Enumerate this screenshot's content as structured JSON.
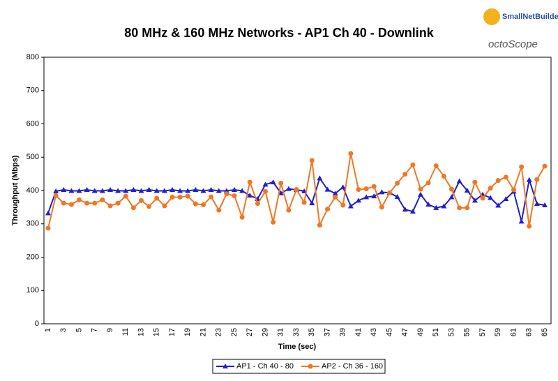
{
  "chart_data": {
    "type": "line",
    "title": "80 MHz & 160 MHz Networks - AP1 Ch 40 - Downlink",
    "x_label": "Time (sec)",
    "y_label": "Throughput (Mbps)",
    "logo": [
      "SmallNetBuilder",
      "octoScope"
    ],
    "categories": [
      1,
      null,
      3,
      null,
      5,
      null,
      7,
      null,
      9,
      null,
      11,
      null,
      13,
      null,
      15,
      null,
      17,
      null,
      19,
      null,
      21,
      null,
      23,
      null,
      25,
      null,
      27,
      null,
      29,
      null,
      31,
      null,
      33,
      null,
      35,
      null,
      37,
      null,
      39,
      null,
      41,
      null,
      43,
      null,
      45,
      null,
      47,
      null,
      49,
      null,
      51,
      null,
      53,
      null,
      55,
      null,
      57,
      null,
      59,
      null,
      61,
      null,
      63,
      null,
      65
    ],
    "ylim": [
      0,
      800
    ],
    "yticks": [
      0,
      100,
      200,
      300,
      400,
      500,
      600,
      700,
      800
    ],
    "grid": false,
    "legend": "bottom",
    "series": [
      {
        "name": "AP1 - Ch 40 - 80",
        "color": "#1f1fd0",
        "marker": "triangle",
        "values": [
          332,
          398,
          402,
          399,
          399,
          402,
          399,
          399,
          402,
          399,
          399,
          402,
          399,
          402,
          399,
          399,
          402,
          399,
          399,
          402,
          399,
          402,
          399,
          399,
          402,
          399,
          385,
          375,
          418,
          425,
          392,
          405,
          402,
          398,
          362,
          437,
          403,
          391,
          410,
          353,
          370,
          380,
          383,
          395,
          393,
          381,
          343,
          337,
          388,
          358,
          348,
          353,
          380,
          428,
          400,
          370,
          388,
          378,
          355,
          375,
          397,
          307,
          432,
          360,
          356
        ]
      },
      {
        "name": "AP2 - Ch 36 - 160",
        "color": "#f07822",
        "marker": "circle",
        "values": [
          287,
          385,
          362,
          358,
          372,
          362,
          362,
          372,
          354,
          362,
          383,
          348,
          370,
          352,
          377,
          354,
          380,
          380,
          383,
          360,
          357,
          381,
          341,
          390,
          384,
          320,
          425,
          361,
          397,
          305,
          422,
          341,
          403,
          364,
          490,
          296,
          344,
          380,
          356,
          511,
          403,
          405,
          412,
          350,
          393,
          422,
          449,
          477,
          404,
          423,
          474,
          443,
          404,
          348,
          348,
          425,
          377,
          407,
          430,
          440,
          402,
          471,
          293,
          433,
          473
        ]
      }
    ]
  }
}
